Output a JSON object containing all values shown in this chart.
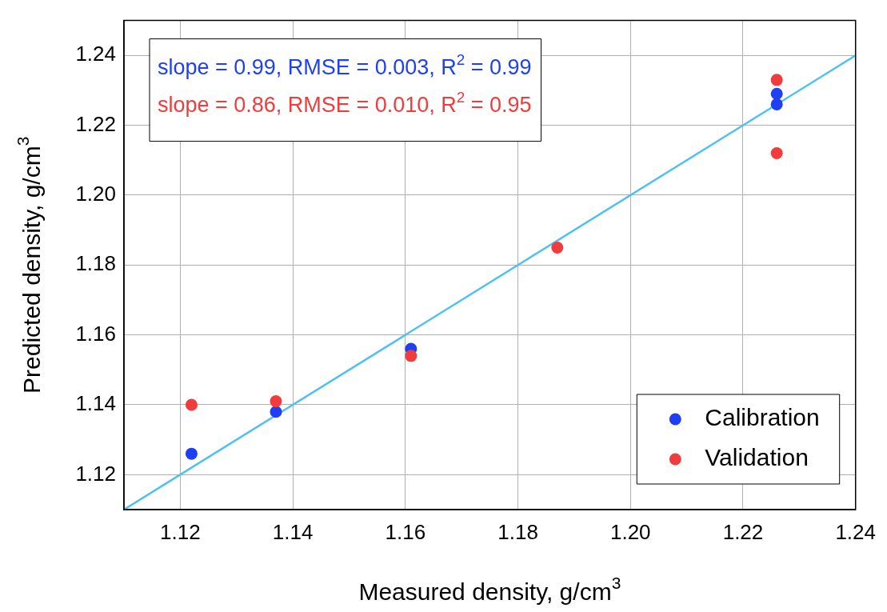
{
  "chart_data": {
    "type": "scatter",
    "xlabel": "Measured density, g/cm$^{3}$",
    "ylabel": "Predicted density, g/cm$^{3}$",
    "xlim": [
      1.11,
      1.24
    ],
    "ylim": [
      1.11,
      1.25
    ],
    "xticks": [
      1.12,
      1.14,
      1.16,
      1.18,
      {
        "value": 1.2,
        "label": "1.20"
      },
      1.22,
      1.24
    ],
    "yticks": [
      1.12,
      1.14,
      1.16,
      1.18,
      {
        "value": 1.2,
        "label": "1.20"
      },
      1.22,
      1.24
    ],
    "grid": true,
    "legend": "bottom right",
    "marker": "circle",
    "annotations": [
      "slope = 0.99, RMSE = 0.003, R$^{2}$ = 0.99",
      "slope = 0.86, RMSE = 0.010, R$^{2}$ = 0.95"
    ],
    "series": [
      {
        "name": "Calibration",
        "color": "#1f3ff5",
        "x": [
          1.122,
          1.137,
          1.161,
          1.187,
          1.226,
          1.226
        ],
        "values": [
          1.126,
          1.138,
          1.156,
          null,
          1.229,
          1.226
        ]
      },
      {
        "name": "Validation",
        "color": "#f03c3c",
        "x": [
          1.122,
          1.137,
          1.161,
          1.187,
          1.226,
          1.226
        ],
        "values": [
          1.14,
          1.141,
          1.154,
          1.185,
          1.233,
          1.212
        ]
      },
      {
        "type": "line",
        "color": "#4fc0f5",
        "x": [
          1.11,
          1.24
        ],
        "values": [
          1.11,
          1.24
        ],
        "marker": "none"
      }
    ]
  }
}
